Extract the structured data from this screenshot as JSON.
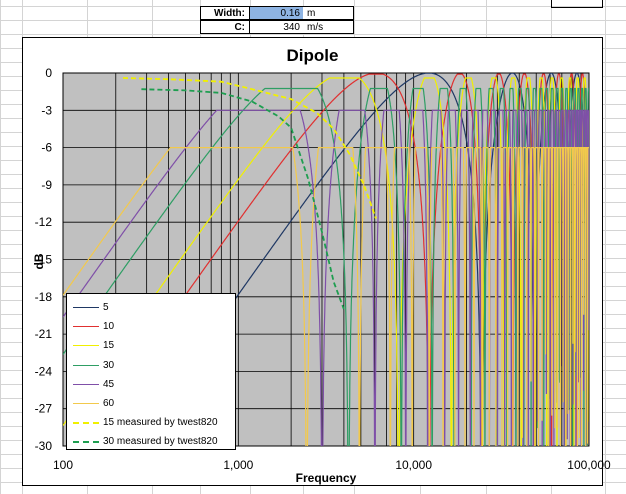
{
  "params": {
    "width": {
      "label": "Width:",
      "value": "0.16",
      "unit": "m"
    },
    "c": {
      "label": "C:",
      "value": "340",
      "unit": "m/s"
    }
  },
  "chart_data": {
    "type": "line",
    "title": "Dipole",
    "xlabel": "Frequency",
    "ylabel": "dB",
    "xscale": "log",
    "xlim": [
      100,
      100000
    ],
    "ylim": [
      -30,
      0
    ],
    "yticks": [
      "0",
      "-3",
      "-6",
      "-9",
      "-12",
      "-15",
      "-18",
      "-21",
      "-24",
      "-27",
      "-30"
    ],
    "xticks": [
      "100",
      "1,000",
      "10,000",
      "100,000"
    ],
    "grid": true,
    "plot_background": "#c0c0c0",
    "legend_position": "bottom-left",
    "series": [
      {
        "name": "5",
        "angle_deg": 5,
        "color": "#1f3864",
        "style": "solid",
        "offset_db": -0.02
      },
      {
        "name": "10",
        "angle_deg": 10,
        "color": "#e03030",
        "style": "solid",
        "offset_db": -0.09
      },
      {
        "name": "15",
        "angle_deg": 15,
        "color": "#f0f000",
        "style": "solid",
        "offset_db": -0.4
      },
      {
        "name": "30",
        "angle_deg": 30,
        "color": "#2e9e64",
        "style": "solid",
        "offset_db": -1.25
      },
      {
        "name": "45",
        "angle_deg": 45,
        "color": "#7f4fa8",
        "style": "solid",
        "offset_db": -3.0
      },
      {
        "name": "60",
        "angle_deg": 60,
        "color": "#f2c94c",
        "style": "solid",
        "offset_db": -6.0
      },
      {
        "name": "15 measured  by twest820",
        "color": "#f0f000",
        "style": "dashed",
        "x": [
          220,
          400,
          800,
          1200,
          2000,
          2800,
          3500,
          4300,
          5200,
          6100
        ],
        "y": [
          -0.4,
          -0.5,
          -0.7,
          -1.3,
          -2.1,
          -3.2,
          -4.5,
          -6.5,
          -9.0,
          -11.7
        ]
      },
      {
        "name": "30 measured  by twest820",
        "color": "#1e9e50",
        "style": "dashed",
        "x": [
          280,
          500,
          800,
          1200,
          1700,
          2000,
          2500,
          3000,
          3500,
          4000
        ],
        "y": [
          -1.3,
          -1.4,
          -1.6,
          -2.3,
          -3.5,
          -4.4,
          -8.5,
          -12.8,
          -16.8,
          -19.0
        ]
      }
    ]
  }
}
